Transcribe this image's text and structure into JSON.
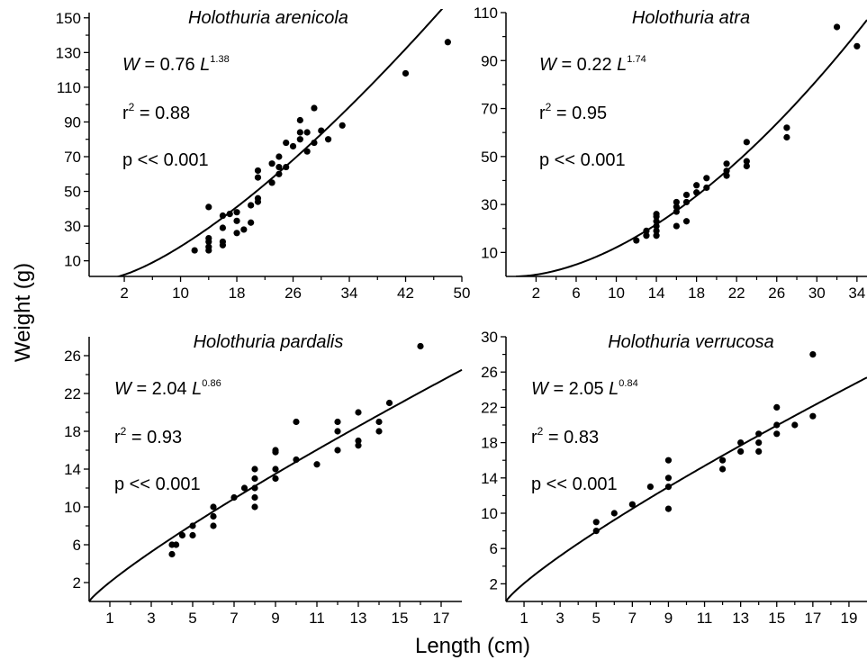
{
  "figure": {
    "ylabel": "Weight (g)",
    "xlabel": "Length (cm)"
  },
  "chart_data": [
    {
      "type": "scatter",
      "title": "Holothuria arenicola",
      "equation": {
        "coef": "W = 0.76 L",
        "exponent": "1.38"
      },
      "r2": {
        "prefix": "r",
        "sup": "2",
        "value": " = 0.88"
      },
      "p": "p << 0.001",
      "xlim": [
        -3,
        50
      ],
      "ylim": [
        1,
        153
      ],
      "xticks": [
        2,
        10,
        18,
        26,
        34,
        42,
        50
      ],
      "yticks": [
        10,
        30,
        50,
        70,
        90,
        110,
        130,
        150
      ],
      "fit": {
        "a": 0.76,
        "b": 1.38
      },
      "points": [
        [
          12,
          16
        ],
        [
          14,
          41
        ],
        [
          14,
          16
        ],
        [
          14,
          18
        ],
        [
          14,
          21
        ],
        [
          14,
          23
        ],
        [
          16,
          19
        ],
        [
          16,
          21
        ],
        [
          16,
          29
        ],
        [
          16,
          36
        ],
        [
          17,
          37
        ],
        [
          18,
          26
        ],
        [
          18,
          33
        ],
        [
          18,
          38
        ],
        [
          19,
          28
        ],
        [
          20,
          32
        ],
        [
          20,
          42
        ],
        [
          21,
          44
        ],
        [
          21,
          46
        ],
        [
          21,
          58
        ],
        [
          21,
          62
        ],
        [
          23,
          55
        ],
        [
          23,
          66
        ],
        [
          24,
          60
        ],
        [
          24,
          64
        ],
        [
          24,
          70
        ],
        [
          25,
          64
        ],
        [
          25,
          78
        ],
        [
          26,
          76
        ],
        [
          27,
          80
        ],
        [
          27,
          84
        ],
        [
          27,
          91
        ],
        [
          28,
          73
        ],
        [
          28,
          84
        ],
        [
          29,
          78
        ],
        [
          29,
          98
        ],
        [
          30,
          85
        ],
        [
          31,
          80
        ],
        [
          33,
          88
        ],
        [
          42,
          118
        ],
        [
          48,
          136
        ]
      ]
    },
    {
      "type": "scatter",
      "title": "Holothuria atra",
      "equation": {
        "coef": "W = 0.22 L",
        "exponent": "1.74"
      },
      "r2": {
        "prefix": "r",
        "sup": "2",
        "value": " = 0.95"
      },
      "p": "p << 0.001",
      "xlim": [
        -1,
        35
      ],
      "ylim": [
        0,
        110
      ],
      "xticks": [
        2,
        6,
        10,
        14,
        18,
        22,
        26,
        30,
        34
      ],
      "yticks": [
        10,
        30,
        50,
        70,
        90,
        110
      ],
      "fit": {
        "a": 0.22,
        "b": 1.74
      },
      "points": [
        [
          12,
          15
        ],
        [
          13,
          17
        ],
        [
          13,
          19
        ],
        [
          14,
          17
        ],
        [
          14,
          19
        ],
        [
          14,
          21
        ],
        [
          14,
          23
        ],
        [
          14,
          25
        ],
        [
          14,
          26
        ],
        [
          16,
          21
        ],
        [
          16,
          27
        ],
        [
          16,
          29
        ],
        [
          16,
          31
        ],
        [
          17,
          23
        ],
        [
          17,
          31
        ],
        [
          17,
          34
        ],
        [
          18,
          35
        ],
        [
          18,
          38
        ],
        [
          19,
          37
        ],
        [
          19,
          41
        ],
        [
          21,
          42
        ],
        [
          21,
          44
        ],
        [
          21,
          47
        ],
        [
          23,
          46
        ],
        [
          23,
          48
        ],
        [
          23,
          56
        ],
        [
          27,
          58
        ],
        [
          27,
          62
        ],
        [
          32,
          104
        ],
        [
          34,
          96
        ]
      ]
    },
    {
      "type": "scatter",
      "title": "Holothuria pardalis",
      "equation": {
        "coef": "W = 2.04 L",
        "exponent": "0.86"
      },
      "r2": {
        "prefix": "r",
        "sup": "2",
        "value": " = 0.93"
      },
      "p": "p << 0.001",
      "xlim": [
        0,
        18
      ],
      "ylim": [
        0,
        28
      ],
      "xticks": [
        1,
        3,
        5,
        7,
        9,
        11,
        13,
        15,
        17
      ],
      "yticks": [
        2,
        6,
        10,
        14,
        18,
        22,
        26
      ],
      "fit": {
        "a": 2.04,
        "b": 0.86
      },
      "points": [
        [
          4,
          5
        ],
        [
          4,
          6
        ],
        [
          4.2,
          6
        ],
        [
          4.5,
          7
        ],
        [
          5,
          7
        ],
        [
          5,
          8
        ],
        [
          6,
          8
        ],
        [
          6,
          9
        ],
        [
          6,
          10
        ],
        [
          7,
          11
        ],
        [
          7.5,
          12
        ],
        [
          8,
          10
        ],
        [
          8,
          11
        ],
        [
          8,
          12
        ],
        [
          8,
          13
        ],
        [
          8,
          14
        ],
        [
          9,
          13
        ],
        [
          9,
          14
        ],
        [
          9,
          16
        ],
        [
          9,
          15.8
        ],
        [
          10,
          15
        ],
        [
          10,
          19
        ],
        [
          11,
          14.5
        ],
        [
          12,
          16
        ],
        [
          12,
          18
        ],
        [
          12,
          19
        ],
        [
          13,
          16.5
        ],
        [
          13,
          17
        ],
        [
          13,
          20
        ],
        [
          14,
          18
        ],
        [
          14,
          19
        ],
        [
          14.5,
          21
        ],
        [
          16,
          27
        ]
      ]
    },
    {
      "type": "scatter",
      "title": "Holothuria verrucosa",
      "equation": {
        "coef": "W = 2.05 L",
        "exponent": "0.84"
      },
      "r2": {
        "prefix": "r",
        "sup": "2",
        "value": " = 0.83"
      },
      "p": "p << 0.001",
      "xlim": [
        0,
        20
      ],
      "ylim": [
        0,
        30
      ],
      "xticks": [
        1,
        3,
        5,
        7,
        9,
        11,
        13,
        15,
        17,
        19
      ],
      "yticks": [
        2,
        6,
        10,
        14,
        18,
        22,
        26,
        30
      ],
      "fit": {
        "a": 2.05,
        "b": 0.84
      },
      "points": [
        [
          5,
          8
        ],
        [
          5,
          9
        ],
        [
          6,
          10
        ],
        [
          7,
          11
        ],
        [
          8,
          13
        ],
        [
          9,
          10.5
        ],
        [
          9,
          13
        ],
        [
          9,
          14
        ],
        [
          9,
          16
        ],
        [
          12,
          15
        ],
        [
          12,
          16
        ],
        [
          13,
          17
        ],
        [
          13,
          18
        ],
        [
          14,
          17
        ],
        [
          14,
          18
        ],
        [
          14,
          19
        ],
        [
          15,
          19
        ],
        [
          15,
          20
        ],
        [
          15,
          22
        ],
        [
          16,
          20
        ],
        [
          17,
          21
        ],
        [
          17,
          28
        ]
      ]
    }
  ]
}
